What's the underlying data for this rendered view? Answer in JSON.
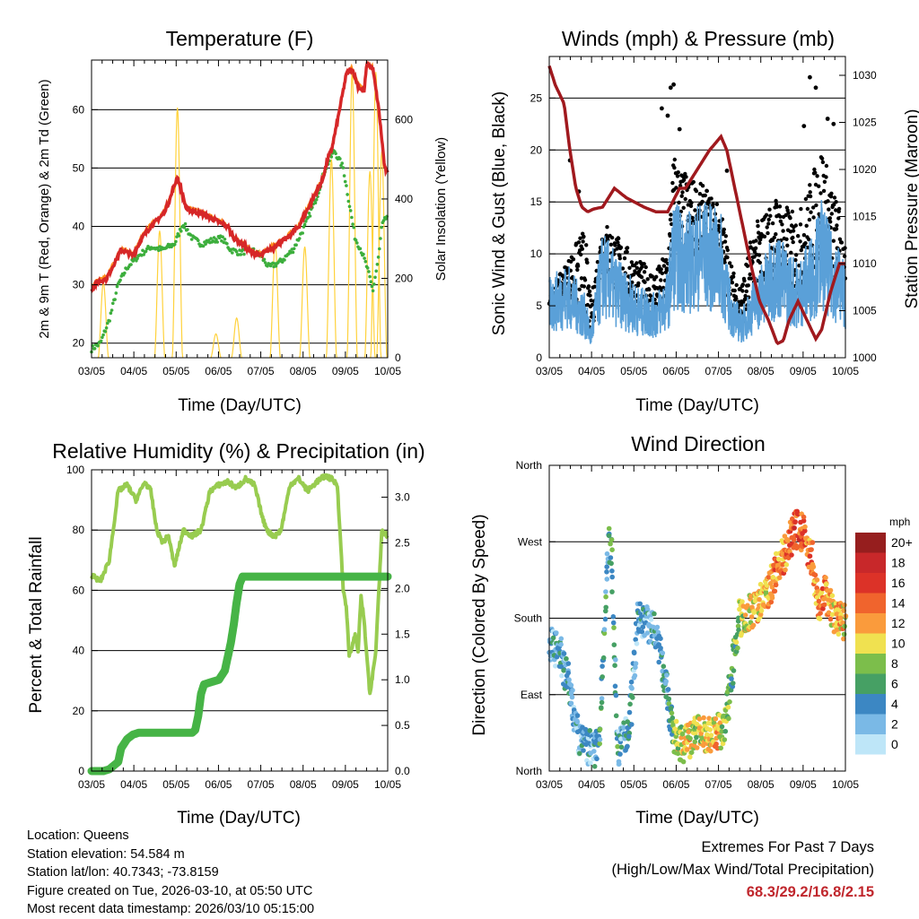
{
  "colors": {
    "temp2m": "#d62728",
    "temp9m": "#ff8c1a",
    "dew": "#3cae3c",
    "solar": "#ffd23c",
    "wind": "#000000",
    "gust": "#5aa0d8",
    "pressure": "#a0191e",
    "rh": "#98cc50",
    "rain": "#46b446"
  },
  "info": {
    "location": "Location: Queens",
    "elevation": "Station elevation: 54.584 m",
    "latlon": "Station lat/lon: 40.7343; -73.8159",
    "created": "Figure created on Tue, 2026-03-10, at 05:50 UTC",
    "recent": "Most recent data timestamp: 2026/03/10 05:15:00"
  },
  "extremes": {
    "title": "Extremes For Past 7 Days",
    "subtitle": "(High/Low/Max Wind/Total Precipitation)",
    "values": "68.3/29.2/16.8/2.15"
  },
  "chart_data": [
    {
      "id": "temp",
      "type": "line",
      "title": "Temperature (F)",
      "xlabel": "Time (Day/UTC)",
      "ylabel": "2m & 9m T (Red, Orange) & 2m Td (Green)",
      "ylabel_right": "Solar Insolation (Yellow)",
      "xticks": [
        "03/05",
        "04/05",
        "05/05",
        "06/05",
        "07/05",
        "08/05",
        "09/05",
        "10/05"
      ],
      "xlim": [
        0,
        5
      ],
      "ylim": [
        17.5,
        68.5
      ],
      "yticks": [
        20,
        30,
        40,
        50,
        60
      ],
      "ylim_right": [
        0,
        750
      ],
      "yticks_right": [
        0,
        200,
        400,
        600
      ],
      "series": [
        {
          "name": "2m T",
          "color": "#d62728",
          "x": [
            0,
            0.1,
            0.25,
            0.4,
            0.5,
            0.7,
            0.85,
            1.0,
            1.2,
            1.3,
            1.45,
            1.6,
            1.75,
            1.9,
            2.1,
            2.3,
            2.4,
            2.55,
            2.7,
            2.85,
            3.0,
            3.15,
            3.3,
            3.5,
            3.6,
            3.75,
            3.9,
            4.0,
            4.05,
            4.15,
            4.3,
            4.4,
            4.5,
            4.6,
            4.65,
            4.75,
            4.85,
            4.95,
            5.0
          ],
          "values": [
            29.2,
            30.5,
            31,
            34,
            36,
            35,
            38,
            40,
            42,
            44,
            48.5,
            43,
            42.5,
            42,
            41,
            40,
            38,
            37,
            35.5,
            35,
            36,
            37,
            38,
            40,
            42,
            45,
            48,
            52,
            53,
            58,
            66,
            67,
            64,
            63,
            68,
            67,
            60,
            50,
            49
          ]
        },
        {
          "name": "9m T",
          "color": "#ff8c1a",
          "x": [
            0,
            0.1,
            0.25,
            0.4,
            0.5,
            0.7,
            0.85,
            1.0,
            1.2,
            1.3,
            1.45,
            1.6,
            1.75,
            1.9,
            2.1,
            2.3,
            2.4,
            2.55,
            2.7,
            2.85,
            3.0,
            3.15,
            3.3,
            3.5,
            3.6,
            3.75,
            3.9,
            4.0,
            4.05,
            4.15,
            4.3,
            4.4,
            4.5,
            4.6,
            4.65,
            4.75,
            4.85,
            4.95,
            5.0
          ],
          "values": [
            29.5,
            30.8,
            31.3,
            34.2,
            36.2,
            35.3,
            38.3,
            40.3,
            42.3,
            44.3,
            48.2,
            43.3,
            42.8,
            42.3,
            41.3,
            40.3,
            38.3,
            37.3,
            35.8,
            35.3,
            36.3,
            37.3,
            38.3,
            40.3,
            42.3,
            45.3,
            48.3,
            51.8,
            53.3,
            58.3,
            66.3,
            67.3,
            64.3,
            63.3,
            68,
            67.3,
            60.3,
            50.3,
            49.3
          ]
        },
        {
          "name": "2m Td",
          "color": "#3cae3c",
          "x": [
            0,
            0.15,
            0.3,
            0.45,
            0.6,
            0.8,
            1.0,
            1.2,
            1.4,
            1.55,
            1.7,
            1.85,
            2.0,
            2.2,
            2.35,
            2.5,
            2.7,
            2.85,
            3.0,
            3.2,
            3.4,
            3.6,
            3.8,
            3.95,
            4.1,
            4.25,
            4.35,
            4.45,
            4.55,
            4.65,
            4.75,
            4.85,
            4.9,
            5.0
          ],
          "values": [
            19,
            20,
            24,
            30,
            33,
            35,
            36.5,
            36,
            37,
            40.5,
            38,
            37,
            37.5,
            38,
            36,
            35.5,
            36,
            35,
            33,
            34,
            36,
            40,
            45,
            50,
            53,
            50,
            44,
            38,
            36,
            33,
            29,
            35,
            40,
            42
          ]
        }
      ],
      "solar": {
        "name": "Solar Insolation",
        "color": "#ffd23c",
        "peaks": [
          [
            0.2,
            190
          ],
          [
            1.15,
            320
          ],
          [
            1.45,
            630
          ],
          [
            2.1,
            60
          ],
          [
            2.45,
            100
          ],
          [
            3.1,
            290
          ],
          [
            3.6,
            280
          ],
          [
            4.05,
            500
          ],
          [
            4.4,
            720
          ],
          [
            4.7,
            470
          ],
          [
            4.8,
            720
          ],
          [
            4.9,
            520
          ]
        ]
      }
    },
    {
      "id": "wind",
      "type": "scatter",
      "title": "Winds (mph) & Pressure (mb)",
      "xlabel": "Time (Day/UTC)",
      "ylabel": "Sonic Wind & Gust (Blue, Black)",
      "ylabel_right": "Station Pressure (Maroon)",
      "xticks": [
        "03/05",
        "04/05",
        "05/05",
        "06/05",
        "07/05",
        "08/05",
        "09/05",
        "10/05"
      ],
      "xlim": [
        0,
        5
      ],
      "ylim": [
        0,
        29
      ],
      "yticks": [
        0,
        5,
        10,
        15,
        20,
        25
      ],
      "ylim_right": [
        1000,
        1032
      ],
      "yticks_right": [
        1000,
        1005,
        1010,
        1015,
        1020,
        1025,
        1030
      ],
      "wind_profile": {
        "x": [
          0,
          0.3,
          0.6,
          0.7,
          0.9,
          1.2,
          1.5,
          1.8,
          2.0,
          2.1,
          2.3,
          2.6,
          2.9,
          3.0,
          3.1,
          3.25,
          3.45,
          3.7,
          3.85,
          4.0,
          4.2,
          4.45,
          4.6,
          4.75,
          4.9,
          5.0
        ],
        "mean": [
          5,
          6,
          4,
          2,
          8,
          6,
          4.5,
          4,
          5.5,
          10,
          9,
          10,
          9,
          6,
          4,
          3,
          5,
          7,
          8,
          7,
          6,
          8,
          10,
          8,
          7,
          6
        ],
        "gust": [
          6,
          9,
          12,
          5,
          13,
          11,
          9,
          8,
          10,
          19,
          17,
          16,
          14,
          11,
          8,
          7,
          12,
          14,
          15,
          14,
          13,
          17,
          20,
          16,
          14,
          10
        ]
      },
      "extra_gusts": [
        [
          2.05,
          26
        ],
        [
          2.1,
          26.3
        ],
        [
          4.4,
          27
        ],
        [
          4.5,
          26
        ],
        [
          4.3,
          22.3
        ],
        [
          3.0,
          18
        ],
        [
          1.9,
          24
        ],
        [
          2.0,
          23.3
        ],
        [
          2.2,
          22
        ],
        [
          4.7,
          23
        ],
        [
          4.8,
          22.5
        ],
        [
          0.35,
          19
        ],
        [
          0.5,
          16
        ]
      ],
      "pressure": {
        "name": "Station Pressure",
        "color": "#a0191e",
        "x": [
          0,
          0.1,
          0.25,
          0.35,
          0.45,
          0.55,
          0.65,
          0.75,
          0.9,
          1.0,
          1.1,
          1.3,
          1.6,
          1.8,
          2.0,
          2.2,
          2.3,
          2.5,
          2.7,
          2.9,
          3.0,
          3.1,
          3.2,
          3.4,
          3.55,
          3.7,
          3.85,
          3.95,
          4.05,
          4.2,
          4.35,
          4.5,
          4.6,
          4.75,
          4.9,
          5.0
        ],
        "values": [
          1031,
          1029,
          1027,
          1022,
          1018,
          1016,
          1015.5,
          1015.8,
          1016,
          1017,
          1018,
          1017,
          1016,
          1015.5,
          1015.5,
          1018,
          1018,
          1020,
          1022,
          1023.5,
          1022,
          1019,
          1016,
          1010,
          1006,
          1004,
          1001.5,
          1001.8,
          1004,
          1006,
          1004,
          1002,
          1003,
          1007,
          1010,
          1010
        ]
      }
    },
    {
      "id": "rh",
      "type": "line",
      "title": "Relative Humidity (%) & Precipitation (in)",
      "xlabel": "Time (Day/UTC)",
      "ylabel": "Percent & Total Rainfall",
      "xticks": [
        "03/05",
        "04/05",
        "05/05",
        "06/05",
        "07/05",
        "08/05",
        "09/05",
        "10/05"
      ],
      "xlim": [
        0,
        5
      ],
      "ylim": [
        0,
        100
      ],
      "yticks": [
        0,
        20,
        40,
        60,
        80,
        100
      ],
      "ylim_right": [
        0,
        3.3
      ],
      "yticks_right": [
        "0.0",
        "0.5",
        "1.0",
        "1.5",
        "2.0",
        "2.5",
        "3.0"
      ],
      "series": [
        {
          "name": "Relative Humidity",
          "color": "#98cc50",
          "x": [
            0,
            0.15,
            0.3,
            0.45,
            0.6,
            0.75,
            0.9,
            1.0,
            1.1,
            1.2,
            1.3,
            1.4,
            1.55,
            1.7,
            1.85,
            2.0,
            2.15,
            2.3,
            2.45,
            2.6,
            2.75,
            2.9,
            3.0,
            3.1,
            3.2,
            3.35,
            3.5,
            3.65,
            3.8,
            3.95,
            4.05,
            4.15,
            4.25,
            4.3,
            4.35,
            4.45,
            4.5,
            4.55,
            4.6,
            4.7,
            4.8,
            4.9,
            5.0
          ],
          "values": [
            65,
            63,
            70,
            93,
            95,
            90,
            96,
            93,
            80,
            76,
            78,
            68,
            80,
            78,
            80,
            93,
            95,
            96,
            94,
            97,
            95,
            83,
            79,
            78,
            80,
            95,
            97,
            93,
            96,
            98,
            97,
            95,
            60,
            55,
            38,
            45,
            40,
            58,
            50,
            25,
            40,
            80,
            78
          ]
        },
        {
          "name": "Total Rainfall",
          "color": "#46b446",
          "x": [
            0,
            0.2,
            0.3,
            0.45,
            0.5,
            0.6,
            0.7,
            0.8,
            1.0,
            1.2,
            1.4,
            1.6,
            1.7,
            1.75,
            1.8,
            1.85,
            1.9,
            2.0,
            2.15,
            2.25,
            2.3,
            2.35,
            2.4,
            2.45,
            2.5,
            2.55,
            3.0,
            3.5,
            4.0,
            4.5,
            5.0
          ],
          "values": [
            0,
            0,
            0.02,
            0.1,
            0.25,
            0.35,
            0.4,
            0.42,
            0.42,
            0.42,
            0.42,
            0.42,
            0.42,
            0.45,
            0.6,
            0.85,
            0.95,
            0.97,
            1.0,
            1.1,
            1.25,
            1.4,
            1.6,
            1.85,
            2.05,
            2.13,
            2.13,
            2.13,
            2.13,
            2.13,
            2.13
          ]
        }
      ]
    },
    {
      "id": "dir",
      "type": "scatter",
      "title": "Wind Direction",
      "xlabel": "Time (Day/UTC)",
      "ylabel": "Direction (Colored By Speed)",
      "xticks": [
        "03/05",
        "04/05",
        "05/05",
        "06/05",
        "07/05",
        "08/05",
        "09/05",
        "10/05"
      ],
      "xlim": [
        0,
        5
      ],
      "ylim": [
        0,
        360
      ],
      "yticks": [
        "North",
        "East",
        "South",
        "West",
        "North"
      ],
      "profile": {
        "x": [
          0,
          0.2,
          0.35,
          0.5,
          0.6,
          0.75,
          0.85,
          1.0,
          1.05,
          1.15,
          1.25,
          1.35,
          1.5,
          1.65,
          1.8,
          2.0,
          2.1,
          2.25,
          2.35,
          2.5,
          2.65,
          2.8,
          2.95,
          3.05,
          3.2,
          3.35,
          3.5,
          3.7,
          3.85,
          4.0,
          4.15,
          4.3,
          4.45,
          4.55,
          4.65,
          4.8,
          4.9,
          5.0
        ],
        "dir": [
          150,
          135,
          100,
          35,
          30,
          25,
          40,
          270,
          260,
          25,
          35,
          50,
          180,
          175,
          165,
          90,
          40,
          30,
          35,
          45,
          40,
          45,
          50,
          95,
          180,
          185,
          195,
          210,
          240,
          260,
          285,
          280,
          245,
          195,
          210,
          185,
          180,
          175
        ],
        "speed": [
          3,
          3,
          4,
          3,
          4,
          2,
          5,
          4,
          5,
          4,
          3,
          4,
          3,
          3,
          4,
          4,
          8,
          10,
          11,
          9,
          10,
          11,
          9,
          7,
          8,
          10,
          11,
          12,
          13,
          13,
          15,
          14,
          13,
          12,
          14,
          10,
          12,
          9
        ]
      },
      "legend": {
        "title": "mph",
        "labels": [
          "20+",
          "18",
          "16",
          "14",
          "12",
          "10",
          "8",
          "6",
          "4",
          "2",
          "0"
        ],
        "colors": [
          "#961e1e",
          "#c8282a",
          "#dc3228",
          "#f0642d",
          "#fa9b3c",
          "#f0e150",
          "#7cbe4b",
          "#46a064",
          "#3c87c3",
          "#7ab9e6",
          "#bee6f8"
        ]
      }
    }
  ]
}
